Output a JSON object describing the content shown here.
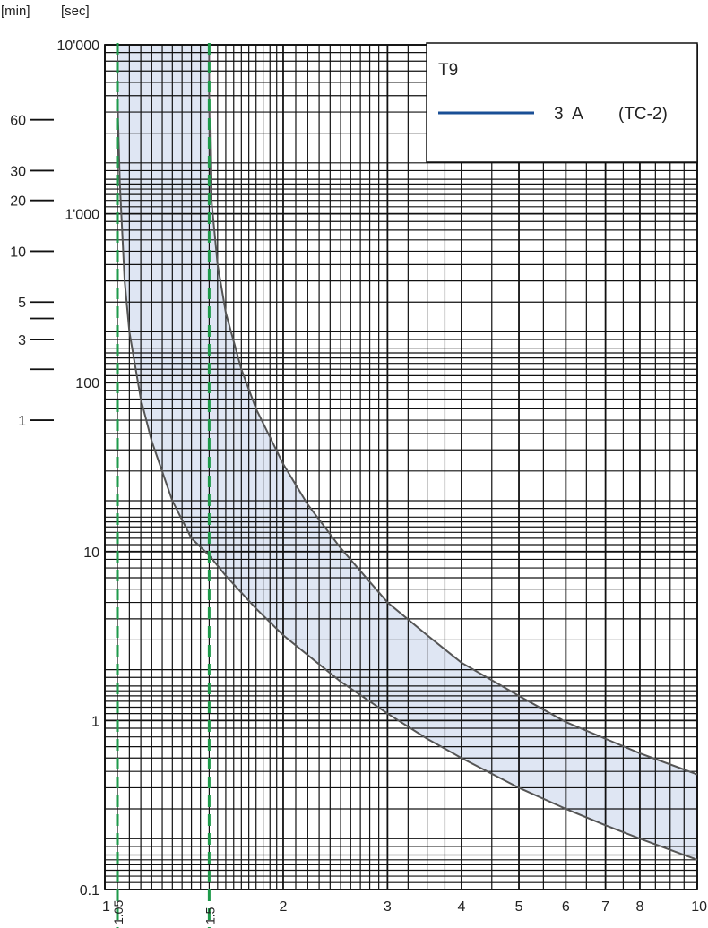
{
  "chart_data": {
    "type": "line",
    "title": "T9",
    "min_axis_label": "[min]",
    "sec_axis_label": "[sec]",
    "x_scale": "log",
    "y_scale": "log",
    "xlim": [
      1,
      10
    ],
    "ylim": [
      0.1,
      10000
    ],
    "grid": true,
    "legend_position": "top-right",
    "legend_entry": {
      "text": "3  A",
      "code": "(TC-2)",
      "color": "#1a4f96"
    },
    "x_ticks": [
      {
        "value": 1,
        "label": "1"
      },
      {
        "value": 2,
        "label": "2"
      },
      {
        "value": 3,
        "label": "3"
      },
      {
        "value": 4,
        "label": "4"
      },
      {
        "value": 5,
        "label": "5"
      },
      {
        "value": 6,
        "label": "6"
      },
      {
        "value": 7,
        "label": "7"
      },
      {
        "value": 8,
        "label": "8"
      },
      {
        "value": 10,
        "label": "10"
      }
    ],
    "x_markers": [
      {
        "value": 1.05,
        "label": "1.05",
        "color": "#1e9a4a"
      },
      {
        "value": 1.5,
        "label": "1.5",
        "color": "#1e9a4a"
      }
    ],
    "y_sec_ticks": [
      {
        "value": 10000,
        "label": "10'000"
      },
      {
        "value": 1000,
        "label": "1'000"
      },
      {
        "value": 100,
        "label": "100"
      },
      {
        "value": 10,
        "label": "10"
      },
      {
        "value": 1,
        "label": "1"
      },
      {
        "value": 0.1,
        "label": "0.1"
      }
    ],
    "y_min_ticks": [
      {
        "seconds": 3600,
        "label": "60"
      },
      {
        "seconds": 1800,
        "label": "30"
      },
      {
        "seconds": 1200,
        "label": "20"
      },
      {
        "seconds": 600,
        "label": "10"
      },
      {
        "seconds": 300,
        "label": "5"
      },
      {
        "seconds": 240,
        "label": ""
      },
      {
        "seconds": 180,
        "label": "3"
      },
      {
        "seconds": 120,
        "label": ""
      },
      {
        "seconds": 60,
        "label": "1"
      }
    ],
    "band_fill_color": "#dfe6f3",
    "curve_color": "#555555",
    "series": [
      {
        "role": "upper",
        "x": [
          1.5,
          1.51,
          1.55,
          1.6,
          1.7,
          1.8,
          2.0,
          2.2,
          2.5,
          3.0,
          3.5,
          4.0,
          5.0,
          6.0,
          7.0,
          8.0,
          10.0
        ],
        "y": [
          5000,
          1300,
          500,
          260,
          120,
          70,
          33,
          19,
          10.5,
          5.0,
          3.2,
          2.2,
          1.4,
          0.98,
          0.78,
          0.64,
          0.48
        ]
      },
      {
        "role": "lower",
        "x": [
          1.05,
          1.06,
          1.08,
          1.1,
          1.15,
          1.2,
          1.3,
          1.4,
          1.5,
          1.6,
          1.8,
          2.0,
          2.5,
          3.0,
          3.5,
          4.0,
          5.0,
          6.0,
          7.0,
          8.0,
          10.0
        ],
        "y": [
          5000,
          1500,
          400,
          200,
          80,
          45,
          20,
          12,
          9.5,
          7.2,
          4.6,
          3.2,
          1.7,
          1.1,
          0.78,
          0.6,
          0.4,
          0.3,
          0.24,
          0.2,
          0.15
        ]
      }
    ]
  }
}
